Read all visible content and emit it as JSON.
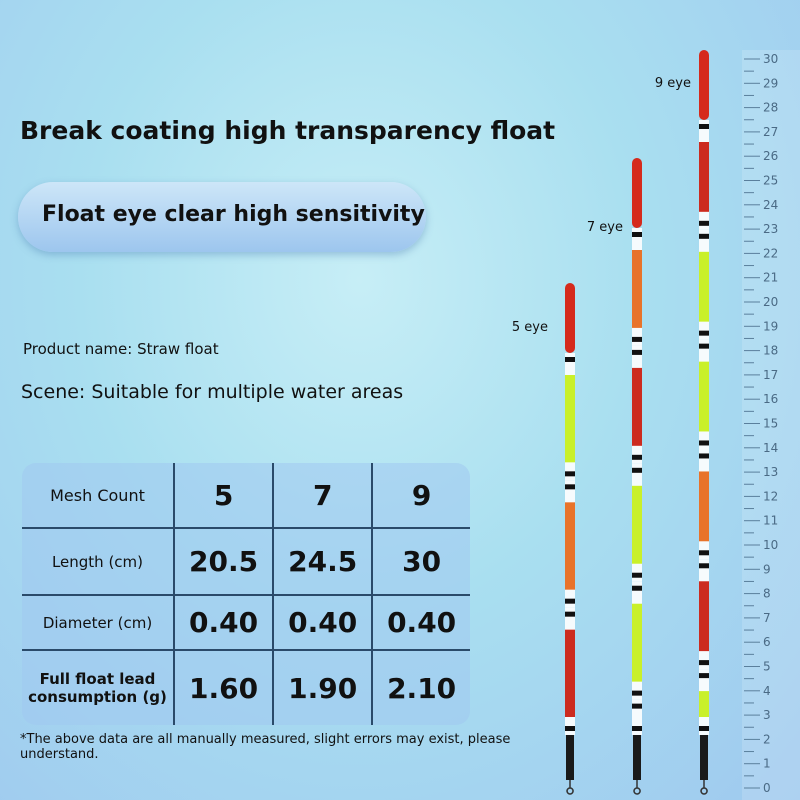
{
  "title": "Break coating high transparency float",
  "badge": "Float eye clear high sensitivity",
  "product_name": "Product name: Straw float",
  "scene": "Scene: Suitable for multiple water areas",
  "table": {
    "rows": [
      [
        "Mesh Count",
        "5",
        "7",
        "9"
      ],
      [
        "Length (cm)",
        "20.5",
        "24.5",
        "30"
      ],
      [
        "Diameter (cm)",
        "0.40",
        "0.40",
        "0.40"
      ],
      [
        "Full float lead consumption (g)",
        "1.60",
        "1.90",
        "2.10"
      ]
    ]
  },
  "note": "*The above data are all manually measured, slight errors may exist, please understand.",
  "floats": [
    {
      "label": "5 eye"
    },
    {
      "label": "7 eye"
    },
    {
      "label": "9 eye"
    }
  ],
  "ruler": {
    "labels": [
      0,
      1,
      2,
      3,
      4,
      5,
      6,
      7,
      8,
      9,
      10,
      11,
      12,
      13,
      14,
      15,
      16,
      17,
      18,
      19,
      20,
      21,
      22,
      23,
      24,
      25,
      26,
      27,
      28,
      29,
      30
    ]
  }
}
